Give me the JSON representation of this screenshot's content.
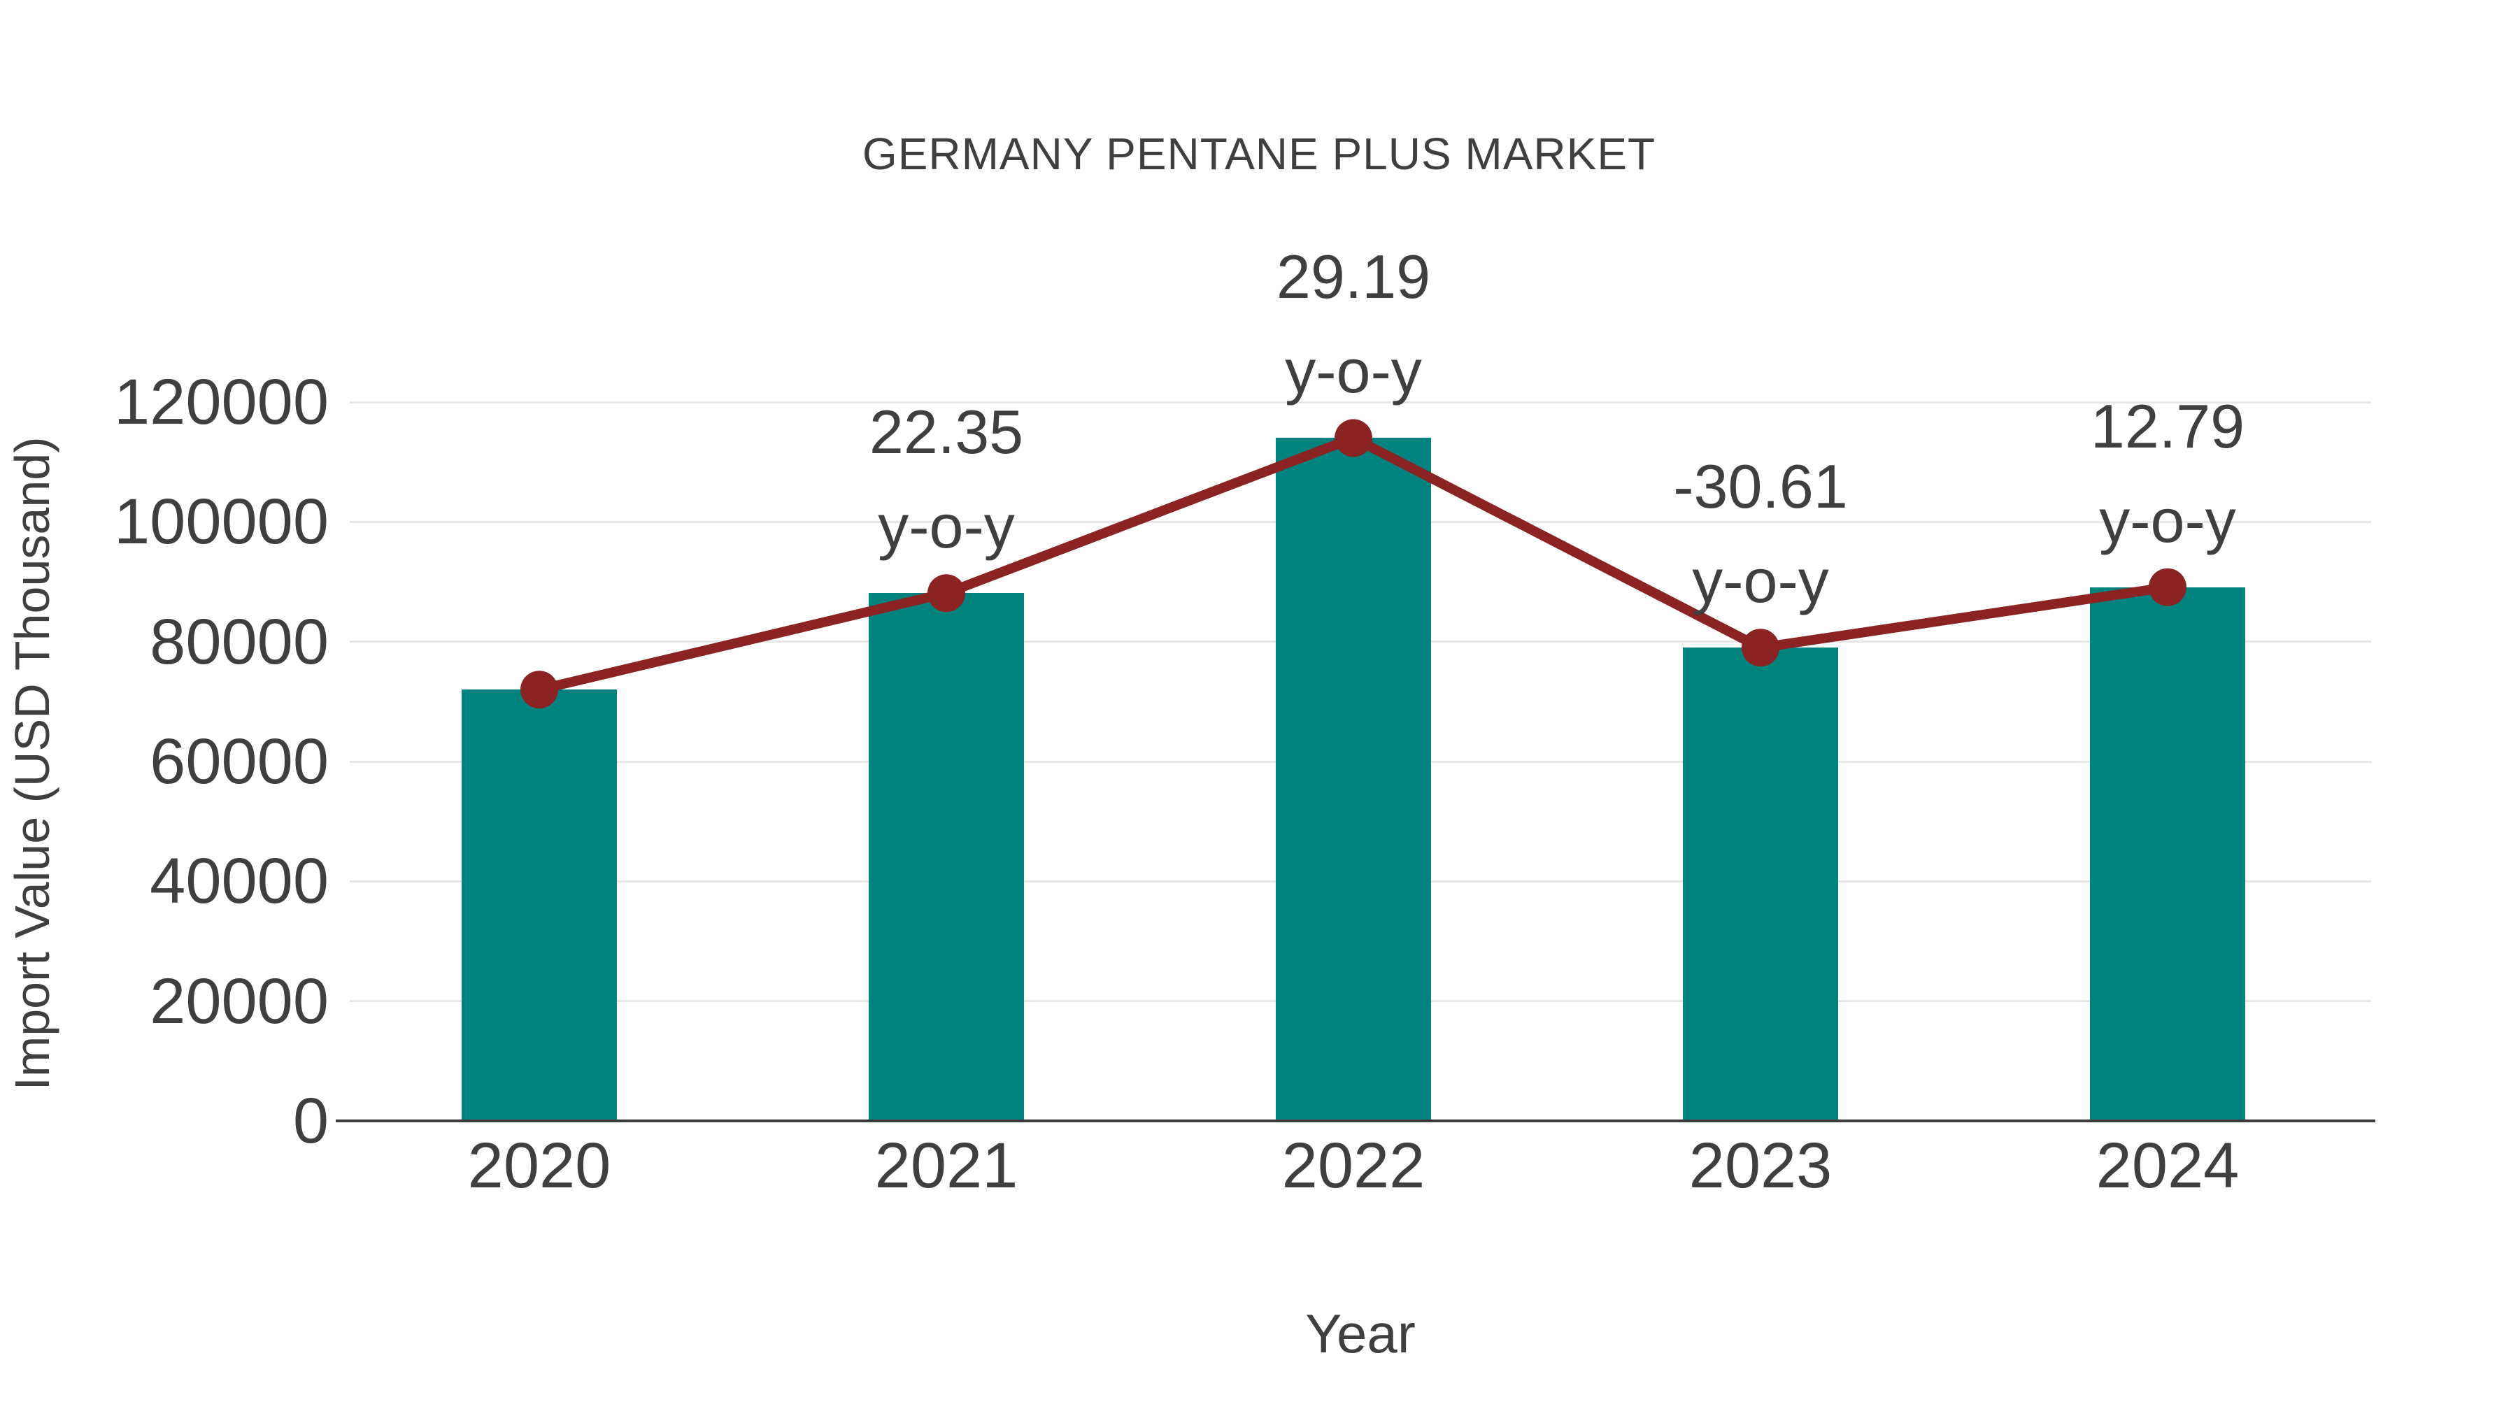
{
  "chart_data": {
    "type": "bar",
    "title": "GERMANY PENTANE PLUS MARKET",
    "xlabel": "Year",
    "ylabel": "Import Value (USD Thousand)",
    "categories": [
      "2020",
      "2021",
      "2022",
      "2023",
      "2024"
    ],
    "series": [
      {
        "name": "Import Value (USD Thousand)",
        "type": "bar",
        "values": [
          72000,
          88100,
          114000,
          79000,
          89100
        ],
        "color": "#00827e"
      },
      {
        "name": "y-o-y change",
        "type": "line",
        "values": [
          72000,
          88100,
          114000,
          79000,
          89100
        ],
        "pct_change": [
          null,
          22.35,
          29.19,
          -30.61,
          12.79
        ],
        "color": "#8a2322"
      }
    ],
    "annotations": [
      {
        "category": "2021",
        "value": "22.35",
        "suffix": "y-o-y"
      },
      {
        "category": "2022",
        "value": "29.19",
        "suffix": "y-o-y"
      },
      {
        "category": "2023",
        "value": "-30.61",
        "suffix": "y-o-y"
      },
      {
        "category": "2024",
        "value": "12.79",
        "suffix": "y-o-y"
      }
    ],
    "yticks": [
      0,
      20000,
      40000,
      60000,
      80000,
      100000,
      120000
    ],
    "ylim": [
      0,
      140000
    ],
    "grid": "horizontal",
    "legend": "none",
    "colors": {
      "bar": "#00827e",
      "line": "#8a2322",
      "text": "#3f3f3f",
      "gridline": "#e7e7e7",
      "axis": "#3c3c3c",
      "background": "#ffffff"
    }
  }
}
